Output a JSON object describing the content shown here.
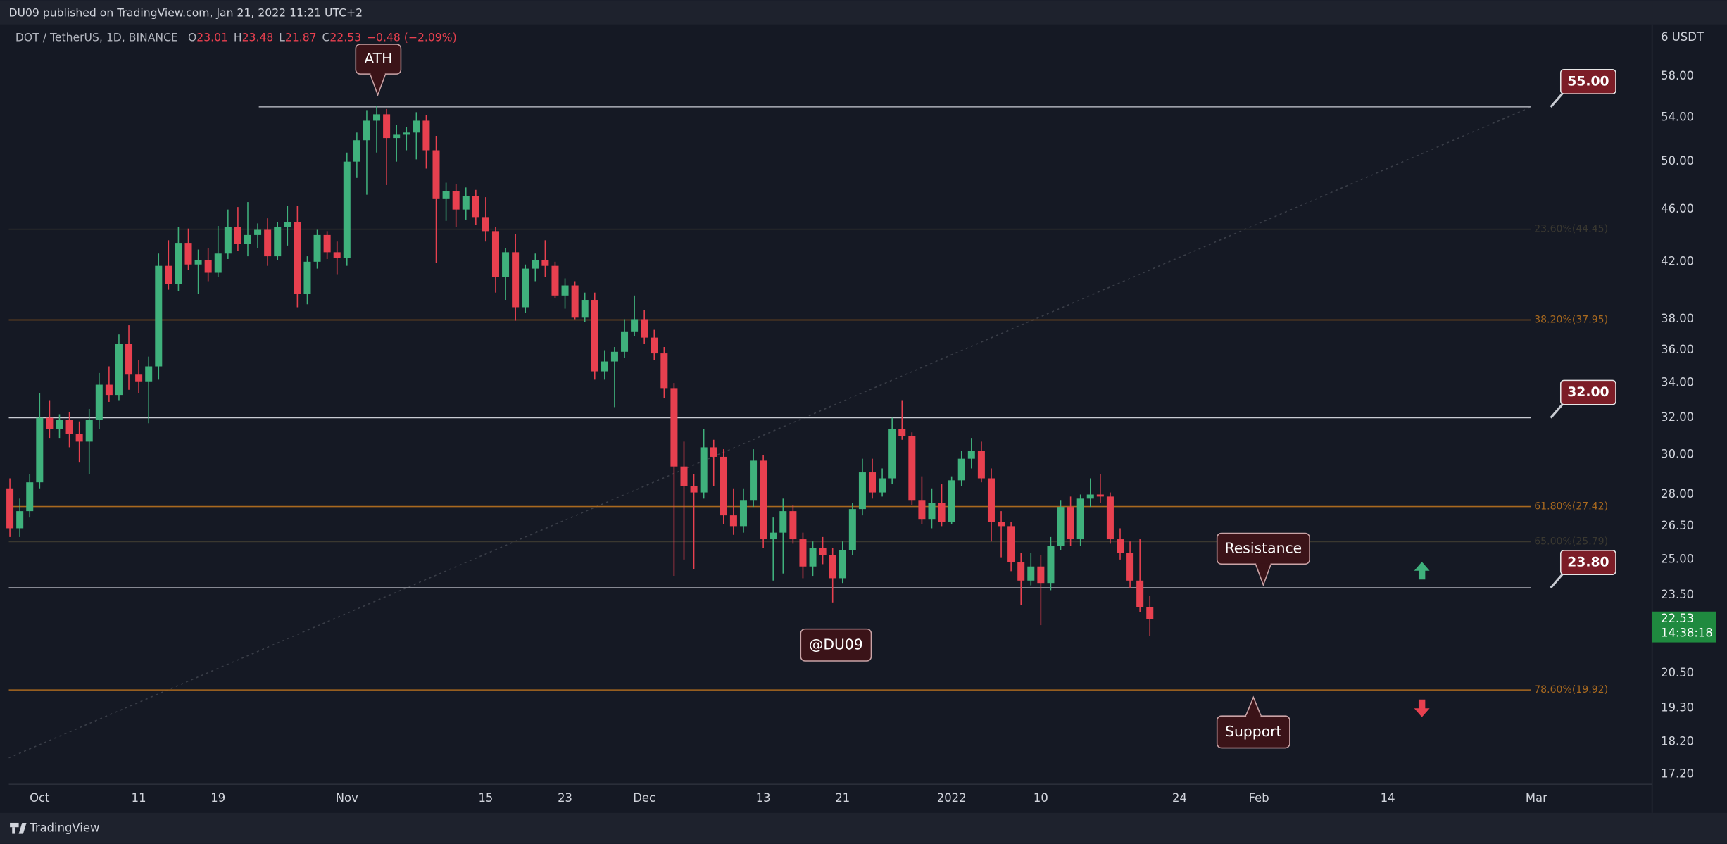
{
  "top_bar": "DU09 published on TradingView.com, Jan 21, 2022 11:21 UTC+2",
  "footer": "TradingView",
  "chart_data": {
    "type": "candlestick",
    "symbol": "DOT / TetherUS, 1D, BINANCE",
    "header_values": [
      {
        "label": "O",
        "value": "23.01"
      },
      {
        "label": "H",
        "value": "23.48"
      },
      {
        "label": "L",
        "value": "21.87"
      },
      {
        "label": "C",
        "value": "22.53"
      }
    ],
    "change": "−0.48 (−2.09%)",
    "currency": "6 USDT",
    "up_color": "#3fb17c",
    "down_color": "#e8404f",
    "log_scale": true,
    "grid": false,
    "x": [
      "2021-09-28",
      "2021-09-29",
      "2021-09-30",
      "2021-10-01",
      "2021-10-02",
      "2021-10-03",
      "2021-10-04",
      "2021-10-05",
      "2021-10-06",
      "2021-10-07",
      "2021-10-08",
      "2021-10-09",
      "2021-10-10",
      "2021-10-11",
      "2021-10-12",
      "2021-10-13",
      "2021-10-14",
      "2021-10-15",
      "2021-10-16",
      "2021-10-17",
      "2021-10-18",
      "2021-10-19",
      "2021-10-20",
      "2021-10-21",
      "2021-10-22",
      "2021-10-23",
      "2021-10-24",
      "2021-10-25",
      "2021-10-26",
      "2021-10-27",
      "2021-10-28",
      "2021-10-29",
      "2021-10-30",
      "2021-10-31",
      "2021-11-01",
      "2021-11-02",
      "2021-11-03",
      "2021-11-04",
      "2021-11-05",
      "2021-11-06",
      "2021-11-07",
      "2021-11-08",
      "2021-11-09",
      "2021-11-10",
      "2021-11-11",
      "2021-11-12",
      "2021-11-13",
      "2021-11-14",
      "2021-11-15",
      "2021-11-16",
      "2021-11-17",
      "2021-11-18",
      "2021-11-19",
      "2021-11-20",
      "2021-11-21",
      "2021-11-22",
      "2021-11-23",
      "2021-11-24",
      "2021-11-25",
      "2021-11-26",
      "2021-11-27",
      "2021-11-28",
      "2021-11-29",
      "2021-11-30",
      "2021-12-01",
      "2021-12-02",
      "2021-12-03",
      "2021-12-04",
      "2021-12-05",
      "2021-12-06",
      "2021-12-07",
      "2021-12-08",
      "2021-12-09",
      "2021-12-10",
      "2021-12-11",
      "2021-12-12",
      "2021-12-13",
      "2021-12-14",
      "2021-12-15",
      "2021-12-16",
      "2021-12-17",
      "2021-12-18",
      "2021-12-19",
      "2021-12-20",
      "2021-12-21",
      "2021-12-22",
      "2021-12-23",
      "2021-12-24",
      "2021-12-25",
      "2021-12-26",
      "2021-12-27",
      "2021-12-28",
      "2021-12-29",
      "2021-12-30",
      "2021-12-31",
      "2022-01-01",
      "2022-01-02",
      "2022-01-03",
      "2022-01-04",
      "2022-01-05",
      "2022-01-06",
      "2022-01-07",
      "2022-01-08",
      "2022-01-09",
      "2022-01-10",
      "2022-01-11",
      "2022-01-12",
      "2022-01-13",
      "2022-01-14",
      "2022-01-15",
      "2022-01-16",
      "2022-01-17",
      "2022-01-18",
      "2022-01-19",
      "2022-01-20",
      "2022-01-21"
    ],
    "open": [
      28.3,
      26.4,
      27.2,
      28.6,
      32.0,
      31.4,
      31.9,
      31.1,
      30.7,
      31.9,
      33.9,
      33.3,
      36.4,
      34.5,
      34.1,
      35.0,
      41.7,
      40.4,
      43.4,
      41.8,
      42.1,
      41.2,
      42.6,
      44.6,
      43.3,
      44.0,
      44.4,
      42.4,
      44.6,
      45.0,
      39.7,
      42.0,
      44.0,
      42.7,
      42.3,
      50.0,
      51.9,
      53.7,
      54.3,
      52.1,
      52.4,
      52.6,
      53.7,
      51.0,
      46.9,
      47.5,
      46.0,
      47.1,
      45.4,
      44.3,
      40.9,
      42.7,
      38.8,
      41.5,
      42.1,
      41.7,
      39.6,
      40.3,
      38.1,
      39.3,
      34.7,
      35.3,
      35.9,
      37.2,
      38.0,
      36.8,
      35.8,
      33.7,
      29.4,
      28.4,
      28.1,
      30.4,
      29.9,
      27.0,
      26.5,
      27.7,
      29.7,
      25.9,
      26.2,
      27.2,
      25.9,
      24.7,
      25.5,
      25.2,
      24.2,
      25.4,
      27.3,
      29.1,
      28.1,
      28.8,
      31.4,
      31.0,
      27.7,
      26.8,
      27.6,
      26.7,
      28.7,
      29.8,
      30.2,
      28.8,
      26.7,
      26.5,
      24.9,
      24.1,
      24.7,
      24.0,
      25.6,
      27.4,
      25.9,
      27.8,
      28.0,
      27.9,
      25.9,
      25.3,
      24.1,
      23.01
    ],
    "high": [
      28.8,
      27.8,
      29.0,
      33.4,
      33.0,
      32.2,
      32.3,
      31.8,
      32.5,
      34.6,
      35.0,
      37.0,
      37.6,
      35.4,
      35.6,
      42.6,
      43.6,
      44.6,
      44.5,
      42.9,
      43.0,
      44.7,
      46.0,
      46.2,
      46.6,
      44.9,
      45.3,
      45.0,
      46.3,
      46.3,
      42.4,
      44.4,
      44.3,
      43.5,
      50.8,
      52.6,
      54.7,
      55.1,
      54.8,
      53.3,
      53.1,
      54.5,
      54.2,
      52.3,
      48.2,
      48.1,
      47.8,
      47.6,
      47.0,
      44.6,
      43.0,
      44.1,
      41.8,
      42.6,
      43.6,
      42.0,
      40.8,
      40.6,
      39.8,
      39.8,
      36.0,
      36.2,
      38.0,
      39.6,
      38.6,
      37.3,
      36.2,
      34.0,
      30.7,
      29.0,
      31.4,
      30.8,
      30.3,
      28.3,
      28.3,
      30.3,
      30.0,
      26.9,
      27.8,
      27.5,
      26.2,
      25.8,
      26.0,
      25.5,
      25.8,
      27.6,
      29.8,
      29.8,
      29.3,
      32.0,
      33.0,
      31.2,
      28.9,
      28.3,
      28.5,
      28.9,
      30.2,
      30.9,
      30.7,
      29.3,
      27.2,
      26.7,
      25.3,
      25.3,
      25.2,
      26.0,
      27.7,
      27.9,
      28.0,
      28.8,
      29.0,
      28.1,
      26.4,
      25.8,
      25.9,
      23.48
    ],
    "low": [
      26.0,
      26.0,
      26.9,
      28.3,
      30.9,
      30.9,
      30.4,
      29.6,
      29.0,
      31.4,
      32.9,
      33.0,
      33.6,
      33.4,
      31.7,
      34.2,
      40.0,
      39.9,
      41.4,
      39.7,
      40.6,
      40.9,
      42.2,
      42.8,
      42.4,
      43.0,
      41.7,
      42.1,
      43.2,
      38.8,
      39.0,
      41.5,
      42.2,
      41.1,
      41.7,
      48.6,
      47.2,
      50.8,
      48.0,
      50.0,
      51.0,
      50.2,
      49.4,
      41.9,
      45.1,
      44.6,
      45.2,
      44.8,
      43.5,
      39.8,
      39.3,
      37.9,
      38.4,
      40.6,
      40.9,
      39.4,
      38.7,
      38.0,
      37.8,
      34.2,
      34.2,
      32.6,
      35.5,
      36.9,
      36.4,
      35.4,
      33.1,
      24.3,
      25.0,
      24.6,
      27.8,
      28.4,
      26.6,
      26.1,
      26.2,
      27.4,
      25.5,
      24.1,
      24.4,
      25.7,
      24.2,
      24.3,
      24.8,
      23.2,
      24.0,
      25.2,
      27.0,
      27.8,
      27.9,
      28.5,
      30.8,
      27.5,
      26.6,
      26.4,
      26.5,
      26.6,
      28.4,
      29.3,
      28.6,
      25.8,
      25.1,
      24.5,
      23.1,
      23.9,
      22.3,
      23.7,
      25.4,
      25.6,
      25.6,
      27.4,
      27.6,
      25.7,
      25.0,
      23.8,
      22.8,
      21.87
    ],
    "close": [
      26.4,
      27.2,
      28.6,
      32.0,
      31.4,
      31.9,
      31.1,
      30.7,
      31.9,
      33.9,
      33.3,
      36.4,
      34.5,
      34.1,
      35.0,
      41.7,
      40.4,
      43.4,
      41.8,
      42.1,
      41.2,
      42.6,
      44.6,
      43.3,
      44.0,
      44.4,
      42.4,
      44.6,
      45.0,
      39.7,
      42.0,
      44.0,
      42.7,
      42.3,
      50.0,
      51.9,
      53.7,
      54.3,
      52.1,
      52.4,
      52.6,
      53.7,
      51.0,
      46.9,
      47.5,
      46.0,
      47.1,
      45.4,
      44.3,
      40.9,
      42.7,
      38.8,
      41.5,
      42.1,
      41.7,
      39.6,
      40.3,
      38.1,
      39.3,
      34.7,
      35.3,
      35.9,
      37.2,
      38.0,
      36.8,
      35.8,
      33.7,
      29.4,
      28.4,
      28.1,
      30.4,
      29.9,
      27.0,
      26.5,
      27.7,
      29.7,
      25.9,
      26.2,
      27.2,
      25.9,
      24.7,
      25.5,
      25.2,
      24.2,
      25.4,
      27.3,
      29.1,
      28.1,
      28.8,
      31.4,
      31.0,
      27.7,
      26.8,
      27.6,
      26.7,
      28.7,
      29.8,
      30.2,
      28.8,
      26.7,
      26.5,
      24.9,
      24.1,
      24.7,
      24.0,
      25.6,
      27.4,
      25.9,
      27.8,
      28.0,
      27.9,
      25.9,
      25.3,
      24.1,
      23.0,
      22.53
    ],
    "ylim": [
      16.9,
      63.5
    ],
    "yticks": [
      {
        "value": 58,
        "label": "58.00"
      },
      {
        "value": 54,
        "label": "54.00"
      },
      {
        "value": 50,
        "label": "50.00"
      },
      {
        "value": 46,
        "label": "46.00"
      },
      {
        "value": 42,
        "label": "42.00"
      },
      {
        "value": 38,
        "label": "38.00"
      },
      {
        "value": 36,
        "label": "36.00"
      },
      {
        "value": 34,
        "label": "34.00"
      },
      {
        "value": 32,
        "label": "32.00"
      },
      {
        "value": 30,
        "label": "30.00"
      },
      {
        "value": 28,
        "label": "28.00"
      },
      {
        "value": 26.5,
        "label": "26.50"
      },
      {
        "value": 25,
        "label": "25.00"
      },
      {
        "value": 23.5,
        "label": "23.50"
      },
      {
        "value": 20.5,
        "label": "20.50"
      },
      {
        "value": 19.3,
        "label": "19.30"
      },
      {
        "value": 18.2,
        "label": "18.20"
      },
      {
        "value": 17.2,
        "label": "17.20"
      }
    ],
    "xlim": [
      "2021-09-28",
      "2022-03-12"
    ],
    "xticks": [
      {
        "value": "2021-10-01",
        "label": "Oct"
      },
      {
        "value": "2021-10-11",
        "label": "11"
      },
      {
        "value": "2021-10-19",
        "label": "19"
      },
      {
        "value": "2021-11-01",
        "label": "Nov"
      },
      {
        "value": "2021-11-15",
        "label": "15"
      },
      {
        "value": "2021-11-23",
        "label": "23"
      },
      {
        "value": "2021-12-01",
        "label": "Dec"
      },
      {
        "value": "2021-12-13",
        "label": "13"
      },
      {
        "value": "2021-12-21",
        "label": "21"
      },
      {
        "value": "2022-01-01",
        "label": "2022"
      },
      {
        "value": "2022-01-10",
        "label": "10"
      },
      {
        "value": "2022-01-24",
        "label": "24"
      },
      {
        "value": "2022-02-01",
        "label": "Feb"
      },
      {
        "value": "2022-02-14",
        "label": "14"
      },
      {
        "value": "2022-03-01",
        "label": "Mar"
      }
    ],
    "fib_levels": [
      {
        "value": 44.45,
        "label": "23.60%(44.45)",
        "color": "#3a3830"
      },
      {
        "value": 37.95,
        "label": "38.20%(37.95)",
        "color": "#a8691f"
      },
      {
        "value": 27.42,
        "label": "61.80%(27.42)",
        "color": "#a8691f"
      },
      {
        "value": 25.79,
        "label": "65.00%(25.79)",
        "color": "#3a3830"
      },
      {
        "value": 19.92,
        "label": "78.60%(19.92)",
        "color": "#a8691f"
      }
    ],
    "levels": [
      {
        "value": 55,
        "label": "55.00"
      },
      {
        "value": 32,
        "label": "32.00"
      },
      {
        "value": 23.8,
        "label": "23.80"
      }
    ],
    "last_price": 22.53,
    "countdown": "14:38:18",
    "annotations": [
      "ATH",
      "@DU09",
      "Resistance",
      "Support"
    ]
  }
}
